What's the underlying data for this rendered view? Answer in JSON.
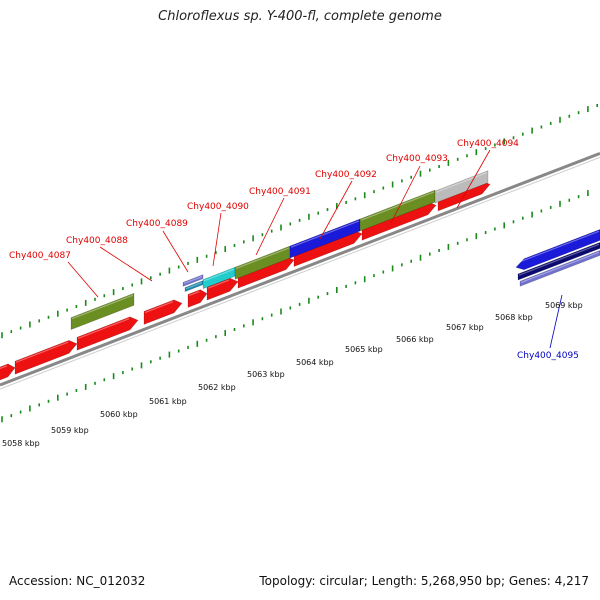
{
  "title": "Chloroflexus sp. Y-400-fl, complete genome",
  "footer": {
    "accession": "Accession: NC_012032",
    "info": "Topology: circular; Length: 5,268,950 bp; Genes: 4,217"
  },
  "colors": {
    "cds": "#ee1111",
    "olive": "#6b8e23",
    "cyan": "#22cccc",
    "blue": "#1a1ad8",
    "navy": "#0a0a70",
    "lavender": "#7070d0",
    "gray": "#bbbbbb",
    "tick": "#1a8a1a",
    "backbone": "#888888",
    "label_top": "#e00000",
    "label_bottom": "#0000c0"
  },
  "scale_labels": [
    "5058 kbp",
    "5059 kbp",
    "5060 kbp",
    "5061 kbp",
    "5062 kbp",
    "5063 kbp",
    "5064 kbp",
    "5065 kbp",
    "5066 kbp",
    "5067 kbp",
    "5068 kbp",
    "5069 kbp"
  ],
  "gene_labels_top": [
    "Chy400_4087",
    "Chy400_4088",
    "Chy400_4089",
    "Chy400_4090",
    "Chy400_4091",
    "Chy400_4092",
    "Chy400_4093",
    "Chy400_4094"
  ],
  "gene_labels_bottom": [
    "Chy400_4095"
  ]
}
